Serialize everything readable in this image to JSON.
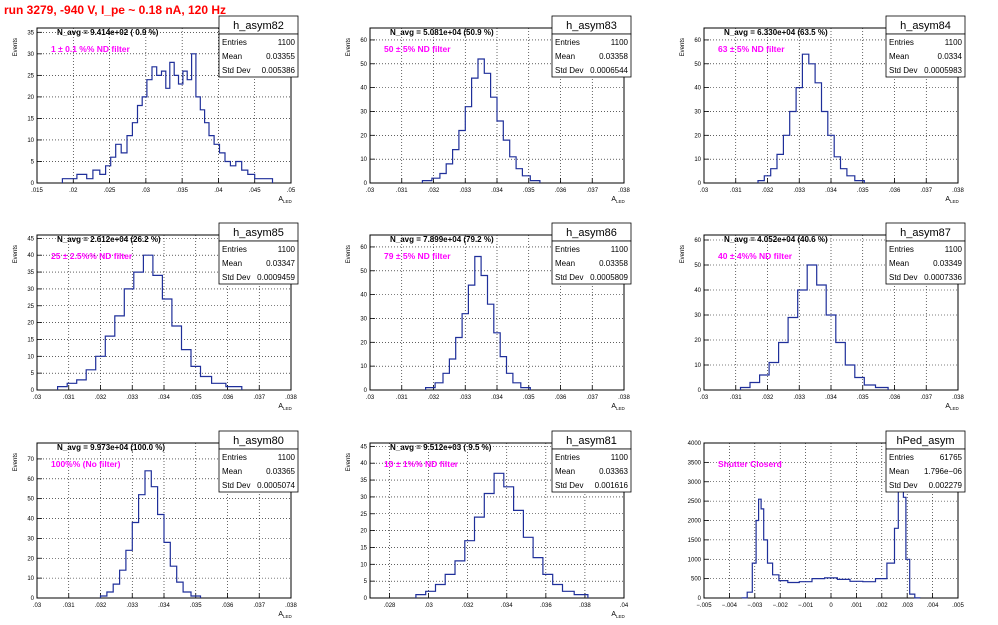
{
  "page_title": "run 3279,  -940 V, I_pe ~ 0.18 nA, 120 Hz",
  "colors": {
    "histogram": "#1f2f9a",
    "annotation": "#ff00ff",
    "title": "#ff0000"
  },
  "chart_data": [
    {
      "type": "histogram",
      "name": "h_asym82",
      "navg": "N_avg = 9.414e+02 ( 0.9 %)",
      "annotation": "1 ± 0.1 %% ND filter",
      "xlabel": "A",
      "xlabel_sub": "LED",
      "ylabel": "Events",
      "xlim": [
        0.015,
        0.05
      ],
      "ylim": [
        0,
        36
      ],
      "xticks": [
        0.015,
        0.02,
        0.025,
        0.03,
        0.035,
        0.04,
        0.045,
        0.05
      ],
      "yticks": [
        0,
        5,
        10,
        15,
        20,
        25,
        30,
        35
      ],
      "stats": [
        [
          "Entries",
          "1100"
        ],
        [
          "Mean",
          "0.03355"
        ],
        [
          "Std Dev",
          "0.005386"
        ]
      ],
      "bins": [
        [
          0.0195,
          1
        ],
        [
          0.0215,
          2
        ],
        [
          0.0222,
          1
        ],
        [
          0.0232,
          3
        ],
        [
          0.0241,
          2
        ],
        [
          0.0248,
          4
        ],
        [
          0.0255,
          6
        ],
        [
          0.0262,
          9
        ],
        [
          0.027,
          7
        ],
        [
          0.0278,
          11
        ],
        [
          0.0285,
          14
        ],
        [
          0.0292,
          18
        ],
        [
          0.0298,
          20
        ],
        [
          0.0305,
          24
        ],
        [
          0.0312,
          27
        ],
        [
          0.0318,
          25
        ],
        [
          0.0325,
          26
        ],
        [
          0.033,
          22
        ],
        [
          0.0336,
          28
        ],
        [
          0.0342,
          25
        ],
        [
          0.0348,
          23
        ],
        [
          0.0354,
          26
        ],
        [
          0.036,
          24
        ],
        [
          0.0366,
          30
        ],
        [
          0.0372,
          20
        ],
        [
          0.0378,
          17
        ],
        [
          0.0384,
          14
        ],
        [
          0.039,
          11
        ],
        [
          0.0398,
          9
        ],
        [
          0.0405,
          7
        ],
        [
          0.0413,
          5
        ],
        [
          0.042,
          4
        ],
        [
          0.0428,
          5
        ],
        [
          0.0436,
          3
        ],
        [
          0.0445,
          2
        ],
        [
          0.0455,
          1
        ],
        [
          0.0468,
          1
        ]
      ]
    },
    {
      "type": "histogram",
      "name": "h_asym83",
      "navg": "N_avg = 5.081e+04 (50.9 %)",
      "annotation": "50 ± 5% ND filter",
      "xlabel": "A",
      "xlabel_sub": "LED",
      "ylabel": "Events",
      "xlim": [
        0.03,
        0.038
      ],
      "ylim": [
        0,
        65
      ],
      "xticks": [
        0.03,
        0.031,
        0.032,
        0.033,
        0.034,
        0.035,
        0.036,
        0.037,
        0.038
      ],
      "yticks": [
        0,
        10,
        20,
        30,
        40,
        50,
        60
      ],
      "stats": [
        [
          "Entries",
          "1100"
        ],
        [
          "Mean",
          "0.03358"
        ],
        [
          "Std Dev",
          "0.0006544"
        ]
      ],
      "bins": [
        [
          0.0318,
          1
        ],
        [
          0.0321,
          2
        ],
        [
          0.0323,
          4
        ],
        [
          0.0325,
          8
        ],
        [
          0.0327,
          14
        ],
        [
          0.0329,
          22
        ],
        [
          0.0331,
          32
        ],
        [
          0.0333,
          44
        ],
        [
          0.0335,
          52
        ],
        [
          0.0337,
          46
        ],
        [
          0.0339,
          36
        ],
        [
          0.0341,
          26
        ],
        [
          0.0343,
          18
        ],
        [
          0.0345,
          11
        ],
        [
          0.0347,
          6
        ],
        [
          0.0349,
          3
        ],
        [
          0.0352,
          1
        ]
      ]
    },
    {
      "type": "histogram",
      "name": "h_asym84",
      "navg": "N_avg = 6.330e+04 (63.5 %)",
      "annotation": "63 ± 5% ND filter",
      "xlabel": "A",
      "xlabel_sub": "LED",
      "ylabel": "Events",
      "xlim": [
        0.03,
        0.038
      ],
      "ylim": [
        0,
        65
      ],
      "xticks": [
        0.03,
        0.031,
        0.032,
        0.033,
        0.034,
        0.035,
        0.036,
        0.037,
        0.038
      ],
      "yticks": [
        0,
        10,
        20,
        30,
        40,
        50,
        60
      ],
      "stats": [
        [
          "Entries",
          "1100"
        ],
        [
          "Mean",
          "0.0334"
        ],
        [
          "Std Dev",
          "0.0005983"
        ]
      ],
      "bins": [
        [
          0.0318,
          1
        ],
        [
          0.032,
          3
        ],
        [
          0.0322,
          6
        ],
        [
          0.0324,
          12
        ],
        [
          0.0326,
          20
        ],
        [
          0.0328,
          30
        ],
        [
          0.033,
          40
        ],
        [
          0.0332,
          54
        ],
        [
          0.0334,
          50
        ],
        [
          0.0336,
          42
        ],
        [
          0.0338,
          30
        ],
        [
          0.034,
          20
        ],
        [
          0.0342,
          11
        ],
        [
          0.0344,
          6
        ],
        [
          0.0346,
          3
        ],
        [
          0.0349,
          1
        ]
      ]
    },
    {
      "type": "histogram",
      "name": "h_asym85",
      "navg": "N_avg = 2.612e+04 (26.2 %)",
      "annotation": "25 ± 2.5%% ND filter",
      "xlabel": "A",
      "xlabel_sub": "LED",
      "ylabel": "Events",
      "xlim": [
        0.03,
        0.038
      ],
      "ylim": [
        0,
        46
      ],
      "xticks": [
        0.03,
        0.031,
        0.032,
        0.033,
        0.034,
        0.035,
        0.036,
        0.037,
        0.038
      ],
      "yticks": [
        0,
        5,
        10,
        15,
        20,
        25,
        30,
        35,
        40,
        45
      ],
      "stats": [
        [
          "Entries",
          "1100"
        ],
        [
          "Mean",
          "0.03347"
        ],
        [
          "Std Dev",
          "0.0009459"
        ]
      ],
      "bins": [
        [
          0.0308,
          1
        ],
        [
          0.0311,
          2
        ],
        [
          0.0314,
          3
        ],
        [
          0.0317,
          6
        ],
        [
          0.032,
          10
        ],
        [
          0.0323,
          16
        ],
        [
          0.0326,
          22
        ],
        [
          0.0329,
          30
        ],
        [
          0.0332,
          35
        ],
        [
          0.0335,
          40
        ],
        [
          0.0338,
          34
        ],
        [
          0.0341,
          27
        ],
        [
          0.0344,
          19
        ],
        [
          0.0347,
          12
        ],
        [
          0.035,
          7
        ],
        [
          0.0353,
          4
        ],
        [
          0.0357,
          2
        ],
        [
          0.0362,
          1
        ]
      ]
    },
    {
      "type": "histogram",
      "name": "h_asym86",
      "navg": "N_avg = 7.899e+04 (79.2 %)",
      "annotation": "79 ± 5% ND filter",
      "xlabel": "A",
      "xlabel_sub": "LED",
      "ylabel": "Events",
      "xlim": [
        0.03,
        0.038
      ],
      "ylim": [
        0,
        65
      ],
      "xticks": [
        0.03,
        0.031,
        0.032,
        0.033,
        0.034,
        0.035,
        0.036,
        0.037,
        0.038
      ],
      "yticks": [
        0,
        10,
        20,
        30,
        40,
        50,
        60
      ],
      "stats": [
        [
          "Entries",
          "1100"
        ],
        [
          "Mean",
          "0.03358"
        ],
        [
          "Std Dev",
          "0.0005809"
        ]
      ],
      "bins": [
        [
          0.0319,
          1
        ],
        [
          0.0322,
          3
        ],
        [
          0.0324,
          7
        ],
        [
          0.0326,
          13
        ],
        [
          0.0328,
          22
        ],
        [
          0.033,
          32
        ],
        [
          0.0332,
          44
        ],
        [
          0.0334,
          56
        ],
        [
          0.0336,
          48
        ],
        [
          0.0338,
          36
        ],
        [
          0.034,
          24
        ],
        [
          0.0342,
          14
        ],
        [
          0.0344,
          7
        ],
        [
          0.0346,
          3
        ],
        [
          0.0349,
          1
        ]
      ]
    },
    {
      "type": "histogram",
      "name": "h_asym87",
      "navg": "N_avg = 4.052e+04 (40.6 %)",
      "annotation": "40 ± 4%% ND filter",
      "xlabel": "A",
      "xlabel_sub": "LED",
      "ylabel": "Events",
      "xlim": [
        0.03,
        0.038
      ],
      "ylim": [
        0,
        62
      ],
      "xticks": [
        0.03,
        0.031,
        0.032,
        0.033,
        0.034,
        0.035,
        0.036,
        0.037,
        0.038
      ],
      "yticks": [
        0,
        10,
        20,
        30,
        40,
        50,
        60
      ],
      "stats": [
        [
          "Entries",
          "1100"
        ],
        [
          "Mean",
          "0.03349"
        ],
        [
          "Std Dev",
          "0.0007336"
        ]
      ],
      "bins": [
        [
          0.0313,
          1
        ],
        [
          0.0316,
          3
        ],
        [
          0.0319,
          6
        ],
        [
          0.0322,
          11
        ],
        [
          0.0325,
          19
        ],
        [
          0.0328,
          29
        ],
        [
          0.0331,
          40
        ],
        [
          0.0334,
          50
        ],
        [
          0.0337,
          42
        ],
        [
          0.034,
          30
        ],
        [
          0.0343,
          19
        ],
        [
          0.0346,
          10
        ],
        [
          0.0349,
          5
        ],
        [
          0.0352,
          2
        ],
        [
          0.0356,
          1
        ]
      ]
    },
    {
      "type": "histogram",
      "name": "h_asym80",
      "navg": "N_avg = 9.973e+04 (100.0 %)",
      "annotation": "100%% (No filter)",
      "xlabel": "A",
      "xlabel_sub": "LED",
      "ylabel": "Events",
      "xlim": [
        0.03,
        0.038
      ],
      "ylim": [
        0,
        78
      ],
      "xticks": [
        0.03,
        0.031,
        0.032,
        0.033,
        0.034,
        0.035,
        0.036,
        0.037,
        0.038
      ],
      "yticks": [
        0,
        10,
        20,
        30,
        40,
        50,
        60,
        70
      ],
      "stats": [
        [
          "Entries",
          "1100"
        ],
        [
          "Mean",
          "0.03365"
        ],
        [
          "Std Dev",
          "0.0005074"
        ]
      ],
      "bins": [
        [
          0.0321,
          1
        ],
        [
          0.0323,
          3
        ],
        [
          0.0325,
          7
        ],
        [
          0.0327,
          14
        ],
        [
          0.0329,
          24
        ],
        [
          0.0331,
          38
        ],
        [
          0.0333,
          52
        ],
        [
          0.0335,
          64
        ],
        [
          0.0337,
          56
        ],
        [
          0.0339,
          42
        ],
        [
          0.0341,
          28
        ],
        [
          0.0343,
          16
        ],
        [
          0.0345,
          8
        ],
        [
          0.0347,
          3
        ],
        [
          0.035,
          1
        ]
      ]
    },
    {
      "type": "histogram",
      "name": "h_asym81",
      "navg": "N_avg = 9.512e+03 ( 9.5 %)",
      "annotation": "10 ± 1%% ND filter",
      "xlabel": "A",
      "xlabel_sub": "LED",
      "ylabel": "Events",
      "xlim": [
        0.027,
        0.04
      ],
      "ylim": [
        0,
        46
      ],
      "xticks": [
        0.028,
        0.03,
        0.032,
        0.034,
        0.036,
        0.038,
        0.04
      ],
      "yticks": [
        0,
        5,
        10,
        15,
        20,
        25,
        30,
        35,
        40,
        45
      ],
      "stats": [
        [
          "Entries",
          "1100"
        ],
        [
          "Mean",
          "0.03363"
        ],
        [
          "Std Dev",
          "0.001616"
        ]
      ],
      "bins": [
        [
          0.0296,
          1
        ],
        [
          0.0301,
          2
        ],
        [
          0.0306,
          4
        ],
        [
          0.0311,
          7
        ],
        [
          0.0316,
          11
        ],
        [
          0.0321,
          17
        ],
        [
          0.0326,
          24
        ],
        [
          0.0331,
          31
        ],
        [
          0.0336,
          37
        ],
        [
          0.0341,
          33
        ],
        [
          0.0346,
          26
        ],
        [
          0.0351,
          18
        ],
        [
          0.0356,
          12
        ],
        [
          0.0361,
          7
        ],
        [
          0.0366,
          4
        ],
        [
          0.0371,
          2
        ],
        [
          0.0378,
          1
        ]
      ]
    },
    {
      "type": "histogram",
      "name": "hPed_asym",
      "navg": "",
      "annotation": "Shutter Closerd",
      "xlabel": "",
      "xlabel_sub": "",
      "ylabel": "",
      "xlim": [
        -0.005,
        0.005
      ],
      "ylim": [
        0,
        4000
      ],
      "xticks": [
        -0.005,
        -0.004,
        -0.003,
        -0.002,
        -0.001,
        0,
        0.001,
        0.002,
        0.003,
        0.004,
        0.005
      ],
      "yticks": [
        0,
        500,
        1000,
        1500,
        2000,
        2500,
        3000,
        3500,
        4000
      ],
      "stats": [
        [
          "Entries",
          "61765"
        ],
        [
          "Mean",
          "1.796e−06"
        ],
        [
          "Std Dev",
          "0.002279"
        ]
      ],
      "bins": [
        [
          -0.0034,
          5
        ],
        [
          -0.0032,
          150
        ],
        [
          -0.003,
          900
        ],
        [
          -0.0029,
          2000
        ],
        [
          -0.0028,
          2550
        ],
        [
          -0.0027,
          2300
        ],
        [
          -0.0026,
          1500
        ],
        [
          -0.0024,
          900
        ],
        [
          -0.0022,
          600
        ],
        [
          -0.0019,
          450
        ],
        [
          -0.0015,
          400
        ],
        [
          -0.001,
          420
        ],
        [
          -0.0005,
          500
        ],
        [
          0,
          520
        ],
        [
          0.0005,
          480
        ],
        [
          0.001,
          430
        ],
        [
          0.0015,
          420
        ],
        [
          0.002,
          500
        ],
        [
          0.0024,
          900
        ],
        [
          0.0026,
          1800
        ],
        [
          0.0027,
          3200
        ],
        [
          0.0028,
          3900
        ],
        [
          0.0029,
          2600
        ],
        [
          0.003,
          1000
        ],
        [
          0.0032,
          100
        ],
        [
          0.0034,
          5
        ]
      ]
    }
  ]
}
